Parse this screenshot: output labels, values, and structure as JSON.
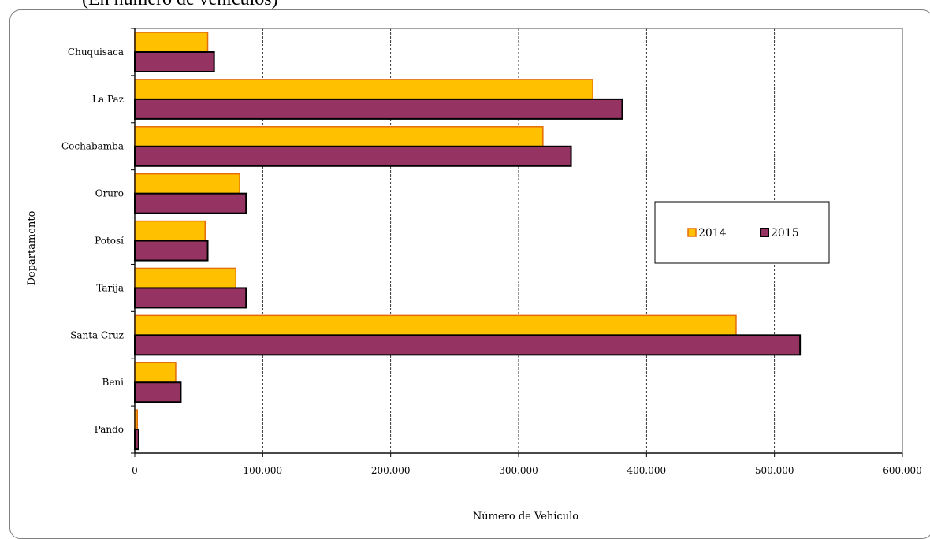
{
  "caption": "(En número de vehículos)",
  "chart_data": {
    "type": "bar",
    "orientation": "horizontal",
    "title": "",
    "xlabel": "Número de Vehículo",
    "ylabel": "Departamento",
    "categories": [
      "Chuquisaca",
      "La Paz",
      "Cochabamba",
      "Oruro",
      "Potosí",
      "Tarija",
      "Santa Cruz",
      "Beni",
      "Pando"
    ],
    "series": [
      {
        "name": "2014",
        "color": "#FFC000",
        "edge_color": "#E46C0A",
        "values": [
          57000,
          358000,
          319000,
          82000,
          55000,
          79000,
          470000,
          32000,
          2000
        ]
      },
      {
        "name": "2015",
        "color": "#953462",
        "edge_color": "#000000",
        "values": [
          62000,
          381000,
          341000,
          87000,
          57000,
          87000,
          520000,
          36000,
          3000
        ]
      }
    ],
    "xlim": [
      0,
      600000
    ],
    "xticks": [
      0,
      100000,
      200000,
      300000,
      400000,
      500000,
      600000
    ],
    "xtick_labels": [
      "0",
      "100.000",
      "200.000",
      "300.000",
      "400.000",
      "500.000",
      "600.000"
    ],
    "grid": "vertical-dashed",
    "legend_position": "right"
  }
}
